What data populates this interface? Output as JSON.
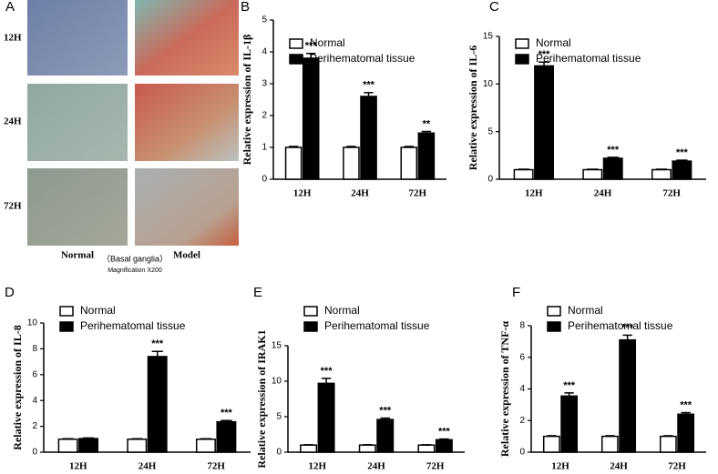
{
  "figure": {
    "panel": "A",
    "rows": [
      "12H",
      "24H",
      "72H"
    ],
    "columns": [
      "Normal",
      "Model"
    ],
    "region": "（Basal ganglia）",
    "magnification": "Magnification X200"
  },
  "chart_data": [
    {
      "type": "bar",
      "panel": "B",
      "ylabel": "Relative expression of IL-1β",
      "categories": [
        "12H",
        "24H",
        "72H"
      ],
      "series": [
        {
          "name": "Normal",
          "color": "#ffffff",
          "values": [
            1,
            1,
            1
          ],
          "errors": [
            0.03,
            0.03,
            0.03
          ]
        },
        {
          "name": "Perihematomal tissue",
          "color": "#000000",
          "values": [
            3.8,
            2.6,
            1.45
          ],
          "errors": [
            0.15,
            0.12,
            0.05
          ]
        }
      ],
      "annotations": [
        "***",
        "***",
        "**"
      ],
      "ylim": [
        0,
        5
      ],
      "yticks": [
        0,
        1,
        2,
        3,
        4,
        5
      ]
    },
    {
      "type": "bar",
      "panel": "C",
      "ylabel": "Relative expression of  IL-6",
      "categories": [
        "12H",
        "24H",
        "72H"
      ],
      "series": [
        {
          "name": "Normal",
          "color": "#ffffff",
          "values": [
            1,
            1,
            1
          ],
          "errors": [
            0.05,
            0.05,
            0.05
          ]
        },
        {
          "name": "Perihematomal tissue",
          "color": "#000000",
          "values": [
            11.9,
            2.2,
            1.9
          ],
          "errors": [
            0.4,
            0.1,
            0.1
          ]
        }
      ],
      "annotations": [
        "***",
        "***",
        "***"
      ],
      "ylim": [
        0,
        15
      ],
      "yticks": [
        0,
        5,
        10,
        15
      ]
    },
    {
      "type": "bar",
      "panel": "D",
      "ylabel": "Relative expression of  IL-8",
      "categories": [
        "12H",
        "24H",
        "72H"
      ],
      "series": [
        {
          "name": "Normal",
          "color": "#ffffff",
          "values": [
            1,
            1,
            1
          ],
          "errors": [
            0.04,
            0.04,
            0.04
          ]
        },
        {
          "name": "Perihematomal tissue",
          "color": "#000000",
          "values": [
            1.05,
            7.4,
            2.35
          ],
          "errors": [
            0.05,
            0.4,
            0.1
          ]
        }
      ],
      "annotations": [
        null,
        "***",
        "***"
      ],
      "ylim": [
        0,
        10
      ],
      "yticks": [
        0,
        2,
        4,
        6,
        8,
        10
      ]
    },
    {
      "type": "bar",
      "panel": "E",
      "ylabel": "Relative expression of IRAK1",
      "categories": [
        "12H",
        "24H",
        "72H"
      ],
      "series": [
        {
          "name": "Normal",
          "color": "#ffffff",
          "values": [
            1,
            1,
            1
          ],
          "errors": [
            0.05,
            0.05,
            0.05
          ]
        },
        {
          "name": "Perihematomal tissue",
          "color": "#000000",
          "values": [
            9.7,
            4.6,
            1.75
          ],
          "errors": [
            0.7,
            0.2,
            0.1
          ]
        }
      ],
      "annotations": [
        "***",
        "***",
        "***"
      ],
      "ylim": [
        0,
        15
      ],
      "yticks": [
        0,
        5,
        10,
        15
      ]
    },
    {
      "type": "bar",
      "panel": "F",
      "ylabel": "Relative expression of TNF-α",
      "categories": [
        "12H",
        "24H",
        "72H"
      ],
      "series": [
        {
          "name": "Normal",
          "color": "#ffffff",
          "values": [
            1,
            1,
            1
          ],
          "errors": [
            0.04,
            0.04,
            0.04
          ]
        },
        {
          "name": "Perihematomal tissue",
          "color": "#000000",
          "values": [
            3.55,
            7.1,
            2.4
          ],
          "errors": [
            0.2,
            0.3,
            0.1
          ]
        }
      ],
      "annotations": [
        "***",
        "***",
        "***"
      ],
      "ylim": [
        0,
        8
      ],
      "yticks": [
        0,
        2,
        4,
        6,
        8
      ]
    }
  ]
}
